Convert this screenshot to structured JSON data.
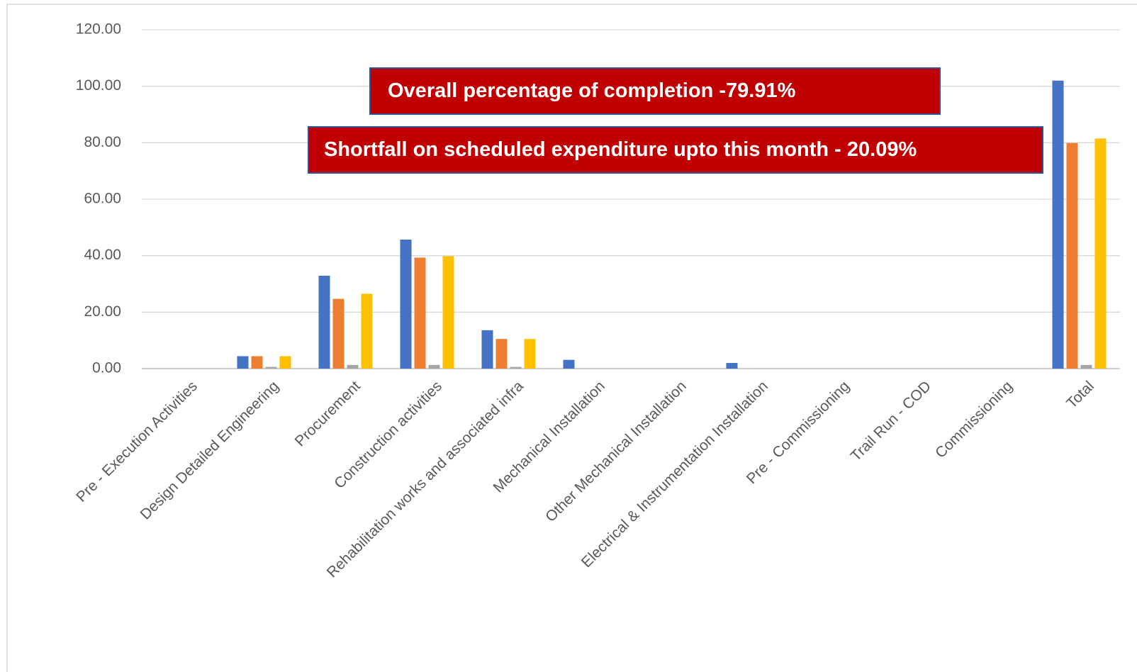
{
  "chart_data": {
    "type": "bar",
    "categories": [
      "Pre - Execution Activities",
      "Design Detailed Engineering",
      "Procurement",
      "Construction activities",
      "Rehabilitation works and associated infra",
      "Mechanical Installation",
      "Other Mechanical Installation",
      "Electrical & Instrumentation Installation",
      "Pre - Commissioning",
      "Trail Run - COD",
      "Commissioning",
      "Total"
    ],
    "series": [
      {
        "color": "#4472c4",
        "values": [
          0,
          4.4,
          32.9,
          45.7,
          13.6,
          3.1,
          0,
          2.0,
          0,
          0,
          0,
          102.0
        ]
      },
      {
        "color": "#ed7d31",
        "values": [
          0,
          4.4,
          24.7,
          39.3,
          10.5,
          0,
          0,
          0,
          0,
          0,
          0,
          79.9
        ]
      },
      {
        "color": "#a5a5a5",
        "values": [
          0,
          0.6,
          1.3,
          1.3,
          0.6,
          0,
          0,
          0,
          0,
          0,
          0,
          1.3
        ]
      },
      {
        "color": "#ffc000",
        "values": [
          0,
          4.4,
          26.5,
          39.8,
          10.5,
          0,
          0,
          0,
          0,
          0,
          0,
          81.5
        ]
      }
    ],
    "ylim": [
      0,
      120
    ],
    "yticks": [
      {
        "value": 0,
        "label": "0.00"
      },
      {
        "value": 20,
        "label": "20.00"
      },
      {
        "value": 40,
        "label": "40.00"
      },
      {
        "value": 60,
        "label": "60.00"
      },
      {
        "value": 80,
        "label": "80.00"
      },
      {
        "value": 100,
        "label": "100.00"
      },
      {
        "value": 120,
        "label": "120.00"
      }
    ],
    "grid": true,
    "annotations": [
      {
        "text": "Overall percentage of completion -79.91%"
      },
      {
        "text": "Shortfall on scheduled expenditure upto this month  - 20.09%"
      }
    ]
  }
}
